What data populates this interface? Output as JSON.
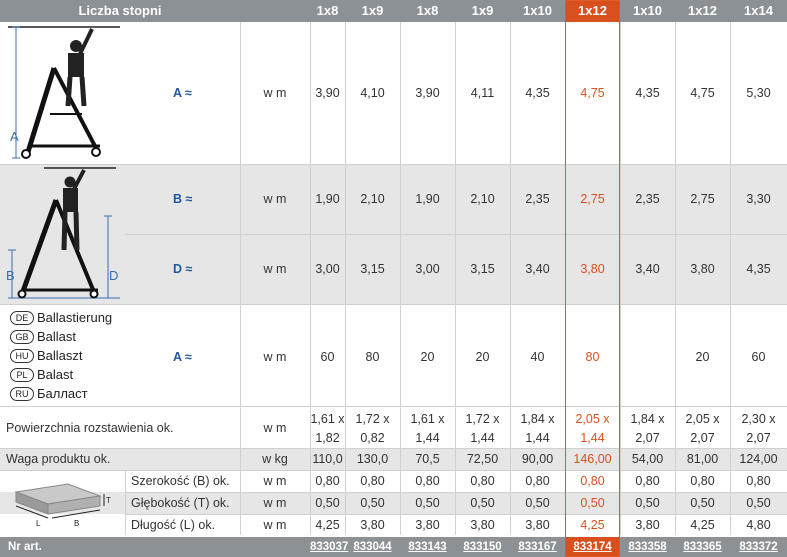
{
  "header": {
    "title": "Liczba stopni",
    "columns": [
      "1x8",
      "1x9",
      "1x8",
      "1x9",
      "1x10",
      "1x12",
      "1x10",
      "1x12",
      "1x14"
    ]
  },
  "rows": {
    "A": {
      "label": "A ≈",
      "unit": "w m",
      "values": [
        "3,90",
        "4,10",
        "3,90",
        "4,11",
        "4,35",
        "4,75",
        "4,35",
        "4,75",
        "5,30"
      ]
    },
    "B": {
      "label": "B ≈",
      "unit": "w m",
      "values": [
        "1,90",
        "2,10",
        "1,90",
        "2,10",
        "2,35",
        "2,75",
        "2,35",
        "2,75",
        "3,30"
      ]
    },
    "D": {
      "label": "D ≈",
      "unit": "w m",
      "values": [
        "3,00",
        "3,15",
        "3,00",
        "3,15",
        "3,40",
        "3,80",
        "3,40",
        "3,80",
        "4,35"
      ]
    },
    "ballast": {
      "label": "A ≈",
      "unit": "w m",
      "values": [
        "60",
        "80",
        "20",
        "20",
        "40",
        "80",
        "",
        "20",
        "60"
      ]
    },
    "surface": {
      "label": "Powierzchnia rozstawienia ok.",
      "unit": "w m",
      "top": [
        "1,61 x",
        "1,72 x",
        "1,61 x",
        "1,72 x",
        "1,84 x",
        "2,05 x",
        "1,84 x",
        "2,05 x",
        "2,30 x"
      ],
      "bottom": [
        "1,82",
        "0,82",
        "1,44",
        "1,44",
        "1,44",
        "1,44",
        "2,07",
        "2,07",
        "2,07"
      ]
    },
    "weight": {
      "label": "Waga produktu ok.",
      "unit": "w kg",
      "values": [
        "110,0",
        "130,0",
        "70,5",
        "72,50",
        "90,00",
        "146,00",
        "54,00",
        "81,00",
        "124,00"
      ]
    },
    "width": {
      "label": "Szerokość (B) ok.",
      "unit": "w m",
      "values": [
        "0,80",
        "0,80",
        "0,80",
        "0,80",
        "0,80",
        "0,80",
        "0,80",
        "0,80",
        "0,80"
      ]
    },
    "depth": {
      "label": "Głębokość (T) ok.",
      "unit": "w m",
      "values": [
        "0,50",
        "0,50",
        "0,50",
        "0,50",
        "0,50",
        "0,50",
        "0,50",
        "0,50",
        "0,50"
      ]
    },
    "length": {
      "label": "Długość (L) ok.",
      "unit": "w m",
      "values": [
        "4,25",
        "3,80",
        "3,80",
        "3,80",
        "3,80",
        "4,25",
        "3,80",
        "4,25",
        "4,80"
      ]
    }
  },
  "ballast_langs": [
    {
      "code": "DE",
      "text": "Ballastierung"
    },
    {
      "code": "GB",
      "text": "Ballast"
    },
    {
      "code": "HU",
      "text": "Ballaszt"
    },
    {
      "code": "PL",
      "text": "Balast"
    },
    {
      "code": "RU",
      "text": "Балласт"
    }
  ],
  "diagram_letters": {
    "a": "A",
    "b": "B",
    "d": "D",
    "box_l": "L",
    "box_b": "B",
    "box_t": "T"
  },
  "footer": {
    "label": "Nr art.",
    "values": [
      "833037",
      "833044",
      "833143",
      "833150",
      "833167",
      "833174",
      "833358",
      "833365",
      "833372"
    ]
  },
  "colors": {
    "header_bg": "#8c9196",
    "highlight": "#d9501f",
    "label_blue": "#1f5aa0",
    "band_gray": "#e6e6e6"
  }
}
